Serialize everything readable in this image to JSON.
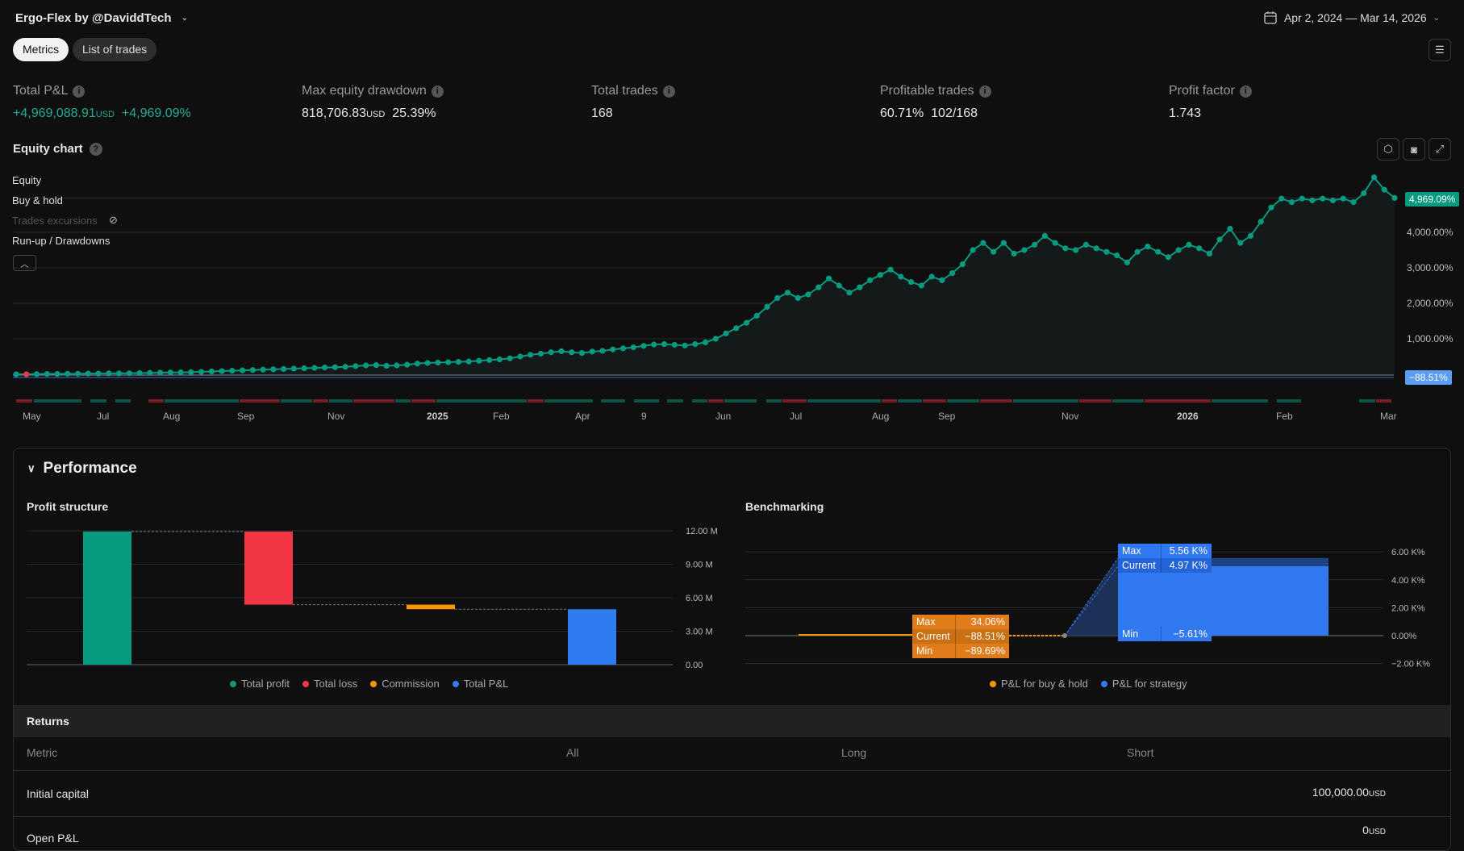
{
  "header": {
    "title": "Ergo-Flex by @DaviddTech",
    "title_glyph": "",
    "date_range": "Apr 2, 2024 — Mar 14, 2026"
  },
  "tabs": [
    {
      "label": "Metrics",
      "active": true
    },
    {
      "label": "List of trades",
      "active": false
    }
  ],
  "metrics": [
    {
      "label": "Total P&L",
      "value": "+4,969,088.91",
      "unit": "USD",
      "extra": "+4,969.09%"
    },
    {
      "label": "Max equity drawdown",
      "value": "818,706.83",
      "unit": "USD",
      "extra": "25.39%"
    },
    {
      "label": "Total trades",
      "value": "168"
    },
    {
      "label": "Profitable trades",
      "value": "60.71%",
      "extra": "102/168"
    },
    {
      "label": "Profit factor",
      "value": "1.743"
    }
  ],
  "equity_chart": {
    "title": "Equity chart",
    "legend": [
      "Equity",
      "Buy & hold",
      "Trades excursions",
      "Run-up / Drawdowns"
    ],
    "y_ticks": [
      "4,000.00%",
      "3,000.00%",
      "2,000.00%",
      "1,000.00%"
    ],
    "equity_badge": "4,969.09%",
    "buyhold_badge": "−88.51%",
    "x_ticks": [
      {
        "label": "May",
        "bold": false
      },
      {
        "label": "Jul",
        "bold": false
      },
      {
        "label": "Aug",
        "bold": false
      },
      {
        "label": "Sep",
        "bold": false
      },
      {
        "label": "Nov",
        "bold": false
      },
      {
        "label": "2025",
        "bold": true
      },
      {
        "label": "Feb",
        "bold": false
      },
      {
        "label": "Apr",
        "bold": false
      },
      {
        "label": "9",
        "bold": false
      },
      {
        "label": "Jun",
        "bold": false
      },
      {
        "label": "Jul",
        "bold": false
      },
      {
        "label": "Aug",
        "bold": false
      },
      {
        "label": "Sep",
        "bold": false
      },
      {
        "label": "Nov",
        "bold": false
      },
      {
        "label": "2026",
        "bold": true
      },
      {
        "label": "Feb",
        "bold": false
      },
      {
        "label": "Mar",
        "bold": false
      }
    ]
  },
  "performance": {
    "title": "Performance",
    "profit_structure": {
      "title": "Profit structure",
      "y_ticks": [
        "12.00 M",
        "9.00 M",
        "6.00 M",
        "3.00 M",
        "0.00"
      ],
      "legend": [
        "Total profit",
        "Total loss",
        "Commission",
        "Total P&L"
      ]
    },
    "benchmarking": {
      "title": "Benchmarking",
      "y_ticks": [
        "6.00 K%",
        "4.00 K%",
        "2.00 K%",
        "0.00%",
        "−2.00 K%"
      ],
      "buy_hold": [
        [
          "Max",
          "34.06%"
        ],
        [
          "Current",
          "−88.51%"
        ],
        [
          "Min",
          "−89.69%"
        ]
      ],
      "strategy": [
        [
          "Max",
          "5.56 K%"
        ],
        [
          "Current",
          "4.97 K%"
        ],
        [
          "Min",
          "−5.61%"
        ]
      ],
      "legend": [
        "P&L for buy & hold",
        "P&L for strategy"
      ]
    }
  },
  "returns": {
    "title": "Returns",
    "columns": [
      "Metric",
      "All",
      "Long",
      "Short"
    ],
    "rows": [
      {
        "metric": "Initial capital",
        "all": "100,000.00",
        "unit": "USD"
      },
      {
        "metric": "Open P&L",
        "all": "0",
        "unit": "USD"
      }
    ]
  },
  "colors": {
    "green": "#089981",
    "red": "#f23645",
    "orange": "#ff9800",
    "blue": "#2f7bf0"
  },
  "chart_data": [
    {
      "type": "line",
      "title": "Equity chart",
      "ylabel": "%",
      "ylim": [
        -100,
        5800
      ],
      "series": [
        {
          "name": "Equity",
          "values": [
            0,
            0,
            5,
            10,
            10,
            15,
            15,
            20,
            20,
            25,
            25,
            30,
            35,
            40,
            45,
            50,
            55,
            60,
            70,
            80,
            90,
            100,
            110,
            120,
            130,
            140,
            150,
            160,
            170,
            180,
            190,
            200,
            210,
            230,
            250,
            260,
            240,
            250,
            270,
            300,
            320,
            330,
            340,
            350,
            360,
            380,
            400,
            420,
            450,
            500,
            550,
            580,
            620,
            650,
            620,
            600,
            640,
            660,
            700,
            730,
            760,
            800,
            840,
            850,
            830,
            810,
            850,
            900,
            1000,
            1150,
            1300,
            1450,
            1650,
            1900,
            2150,
            2300,
            2150,
            2250,
            2450,
            2700,
            2500,
            2300,
            2450,
            2650,
            2800,
            2950,
            2750,
            2600,
            2500,
            2750,
            2650,
            2850,
            3100,
            3500,
            3700,
            3450,
            3700,
            3400,
            3500,
            3650,
            3900,
            3700,
            3550,
            3500,
            3650,
            3550,
            3450,
            3350,
            3150,
            3450,
            3600,
            3450,
            3300,
            3500,
            3650,
            3550,
            3400,
            3800,
            4100,
            3700,
            3900,
            4300,
            4700,
            4950,
            4850,
            4950,
            4900,
            4950,
            4900,
            4950,
            4850,
            5100,
            5550,
            5200,
            4969.09
          ]
        },
        {
          "name": "Buy & hold",
          "final": -88.51
        }
      ]
    },
    {
      "type": "bar",
      "title": "Profit structure",
      "categories": [
        "Total profit",
        "Total loss",
        "Commission",
        "Total P&L"
      ],
      "values": [
        11.93,
        6.55,
        0.41,
        4.97
      ],
      "unit": "M",
      "ylim": [
        0,
        12
      ]
    },
    {
      "type": "bar",
      "title": "Benchmarking",
      "categories": [
        "P&L for buy & hold",
        "P&L for strategy"
      ],
      "values": [
        -88.51,
        4970
      ],
      "max": [
        34.06,
        5560
      ],
      "min": [
        -89.69,
        -5.61
      ],
      "ylim": [
        -2000,
        6000
      ]
    }
  ]
}
